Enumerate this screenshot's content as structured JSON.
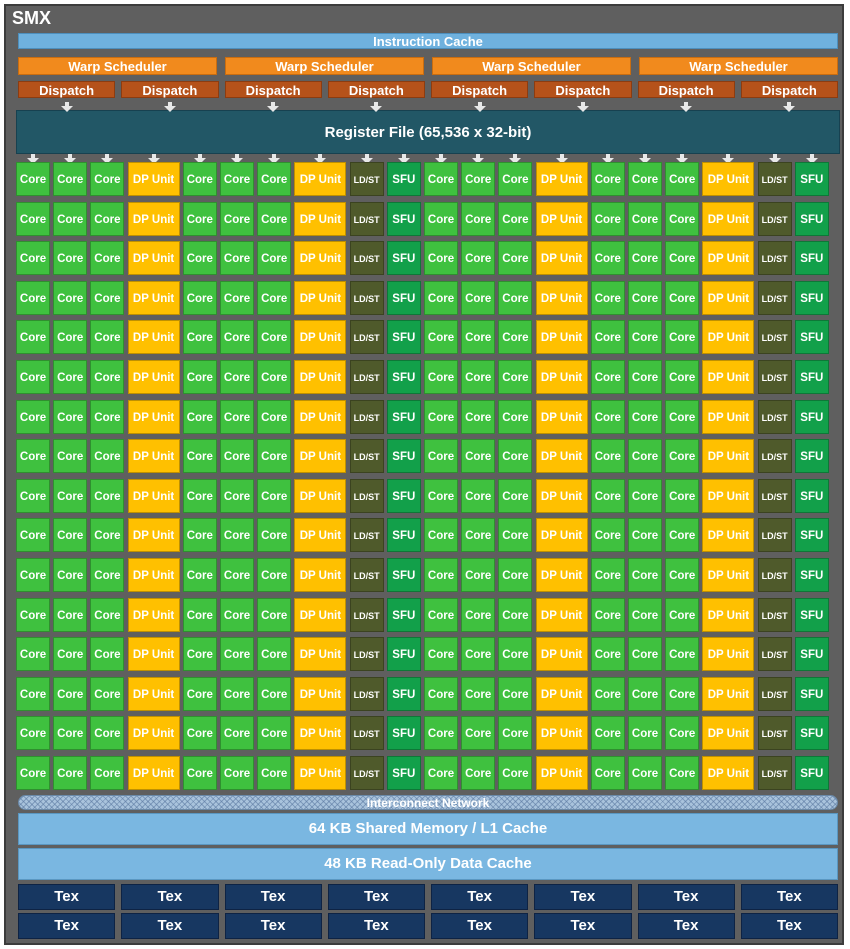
{
  "diagram": {
    "title": "SMX",
    "instruction_cache": "Instruction Cache",
    "warp_scheduler_label": "Warp Scheduler",
    "warp_scheduler_count": 4,
    "dispatch_label": "Dispatch",
    "dispatch_count": 8,
    "register_file": "Register File (65,536 x 32-bit)",
    "unit_labels": {
      "core": "Core",
      "dp": "DP Unit",
      "ldst": "LD/ST",
      "sfu": "SFU"
    },
    "row_pattern": [
      "core",
      "core",
      "core",
      "dp",
      "core",
      "core",
      "core",
      "dp",
      "ldst",
      "sfu",
      "core",
      "core",
      "core",
      "dp",
      "core",
      "core",
      "core",
      "dp",
      "ldst",
      "sfu"
    ],
    "unit_rows": 16,
    "interconnect": "Interconnect Network",
    "shared_memory": "64 KB Shared Memory / L1 Cache",
    "readonly_cache": "48 KB Read-Only Data Cache",
    "tex_label": "Tex",
    "tex_rows": 2,
    "tex_cols": 8,
    "colors": {
      "core": "#3fc13f",
      "dp_unit": "#ffc000",
      "ldst": "#4f5a2b",
      "sfu": "#12a04a",
      "warp_scheduler": "#f18a1d",
      "dispatch": "#b5521a",
      "register_file": "#225766",
      "cache": "#7ab7e1",
      "tex": "#173761"
    }
  }
}
